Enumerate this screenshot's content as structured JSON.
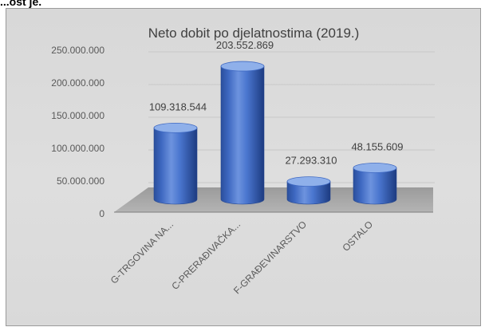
{
  "header_fragment": "...ost je.",
  "chart_data": {
    "type": "bar",
    "title": "Neto dobit po djelatnostima (2019.)",
    "categories": [
      "G-TRGOVINA NA...",
      "C-PRERAĐIVAČKA...",
      "F-GRAĐEVINARSTVO",
      "OSTALO"
    ],
    "values": [
      109318544,
      203552869,
      27293310,
      48155609
    ],
    "value_labels": [
      "109.318.544",
      "203.552.869",
      "27.293.310",
      "48.155.609"
    ],
    "y_ticks": [
      0,
      50000000,
      100000000,
      150000000,
      200000000,
      250000000
    ],
    "y_tick_labels": [
      "0",
      "50.000.000",
      "100.000.000",
      "150.000.000",
      "200.000.000",
      "250.000.000"
    ],
    "ylim": [
      0,
      250000000
    ],
    "grid": true,
    "style": "3d-cylinder",
    "colors": {
      "bar": "#4472c4",
      "bar_dark": "#203f86",
      "bar_light": "#8fb0ea",
      "floor": "#a5a5a5"
    }
  }
}
